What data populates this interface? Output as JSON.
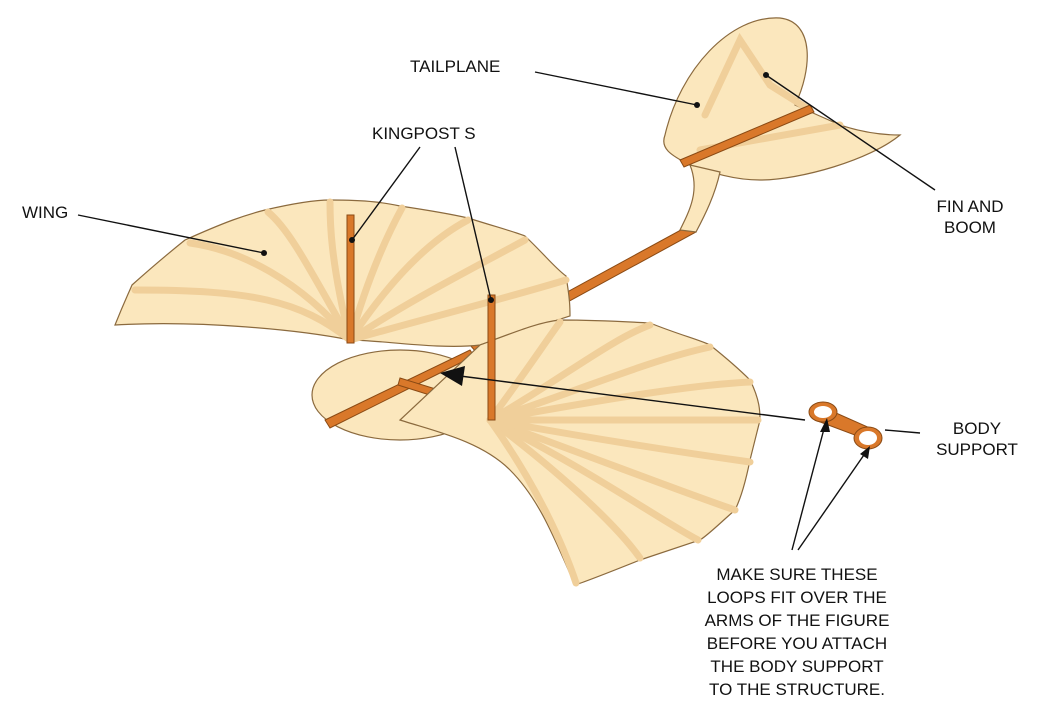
{
  "labels": {
    "tailplane": "TAILPLANE",
    "kingposts": "KINGPOST S",
    "wing": "WING",
    "fin_and_boom": [
      "FIN AND",
      "BOOM"
    ],
    "body_support": [
      "BODY",
      "SUPPORT"
    ],
    "note": [
      "MAKE SURE THESE",
      "LOOPS FIT OVER THE",
      "ARMS OF THE FIGURE",
      "BEFORE YOU ATTACH",
      "THE BODY SUPPORT",
      "TO THE STRUCTURE."
    ]
  }
}
